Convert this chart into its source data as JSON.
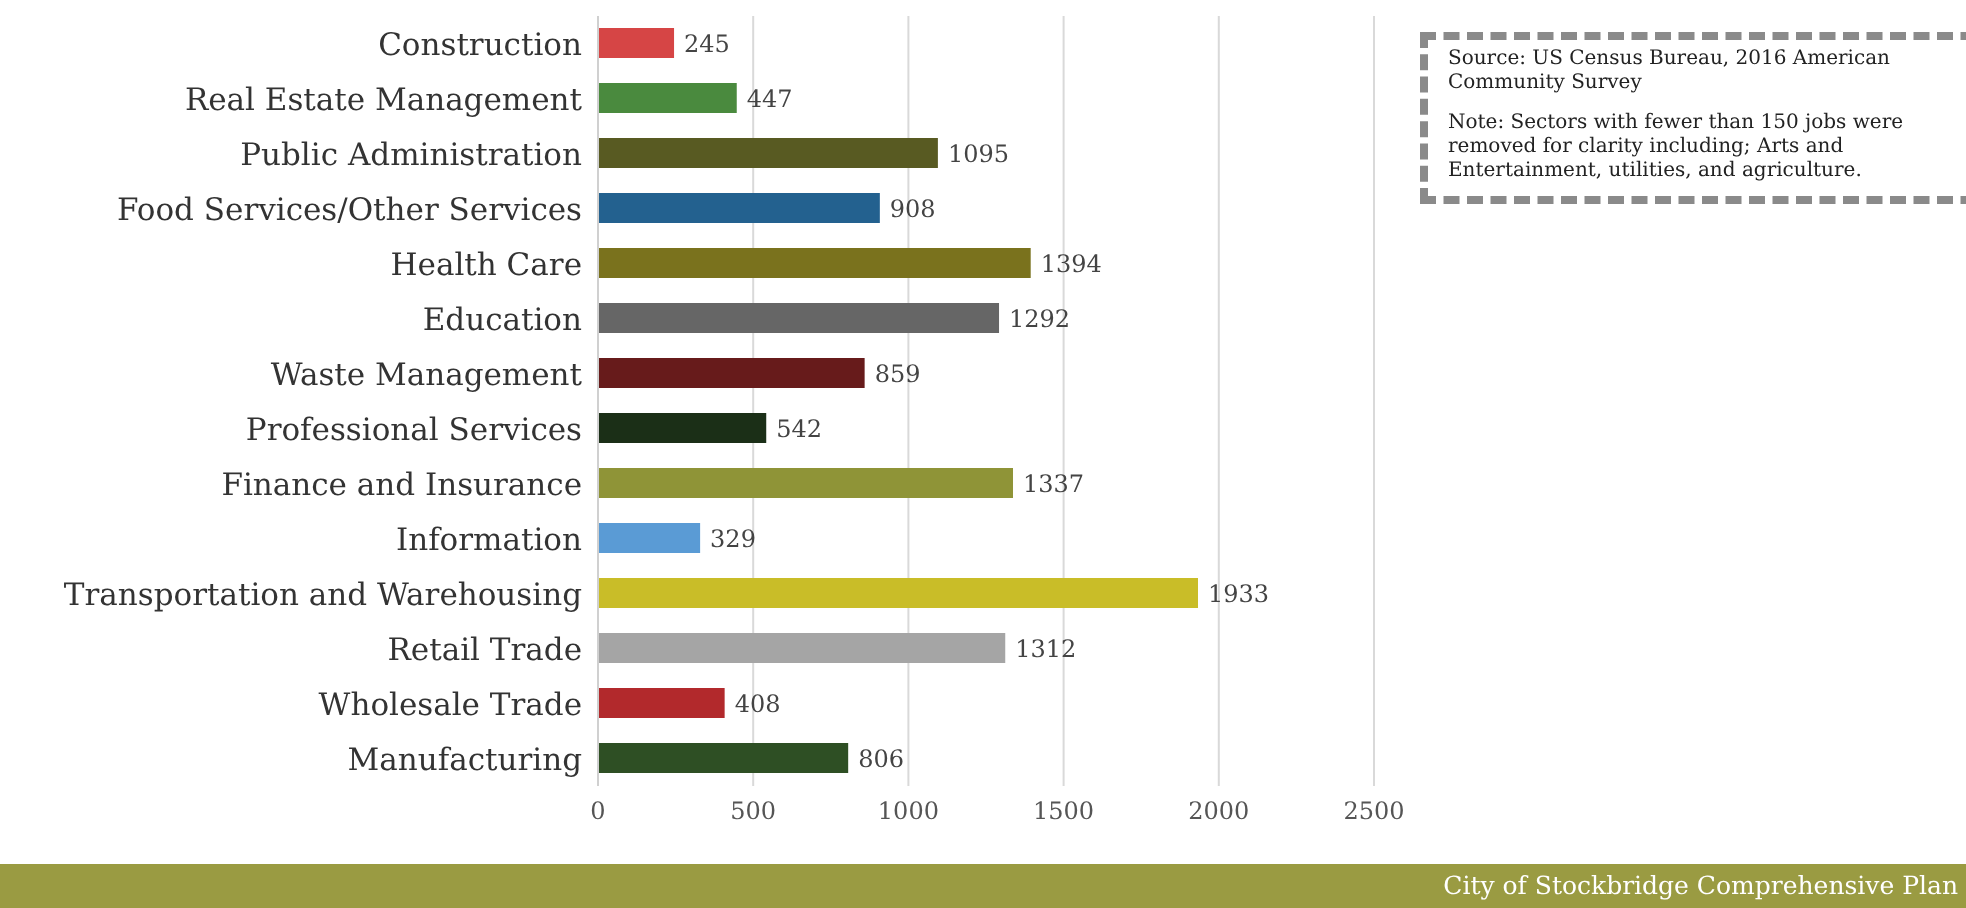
{
  "chart_data": {
    "type": "bar",
    "orientation": "horizontal",
    "categories": [
      "Construction",
      "Real Estate Management",
      "Public Administration",
      "Food Services/Other Services",
      "Health Care",
      "Education",
      "Waste Management",
      "Professional Services",
      "Finance and Insurance",
      "Information",
      "Transportation and Warehousing",
      "Retail Trade",
      "Wholesale Trade",
      "Manufacturing"
    ],
    "values": [
      245,
      447,
      1095,
      908,
      1394,
      1292,
      859,
      542,
      1337,
      329,
      1933,
      1312,
      408,
      806
    ],
    "colors": [
      "#d64545",
      "#4a8a3e",
      "#585a22",
      "#23618f",
      "#7a721d",
      "#666666",
      "#671b1b",
      "#1b2f17",
      "#8f9437",
      "#5a9bd5",
      "#c9bd28",
      "#a5a5a5",
      "#b2292c",
      "#2e4f24"
    ],
    "xlim": [
      0,
      2500
    ],
    "xticks": [
      0,
      500,
      1000,
      1500,
      2000,
      2500
    ],
    "grid": "x",
    "data_labels": true,
    "annotations": [
      "Source: US Census Bureau, 2016 American Community Survey",
      "Note: Sectors with fewer than 150 jobs were removed for clarity including; Arts and Entertainment, utilities, and agriculture.",
      "City of Stockbridge Comprehensive Plan"
    ]
  }
}
